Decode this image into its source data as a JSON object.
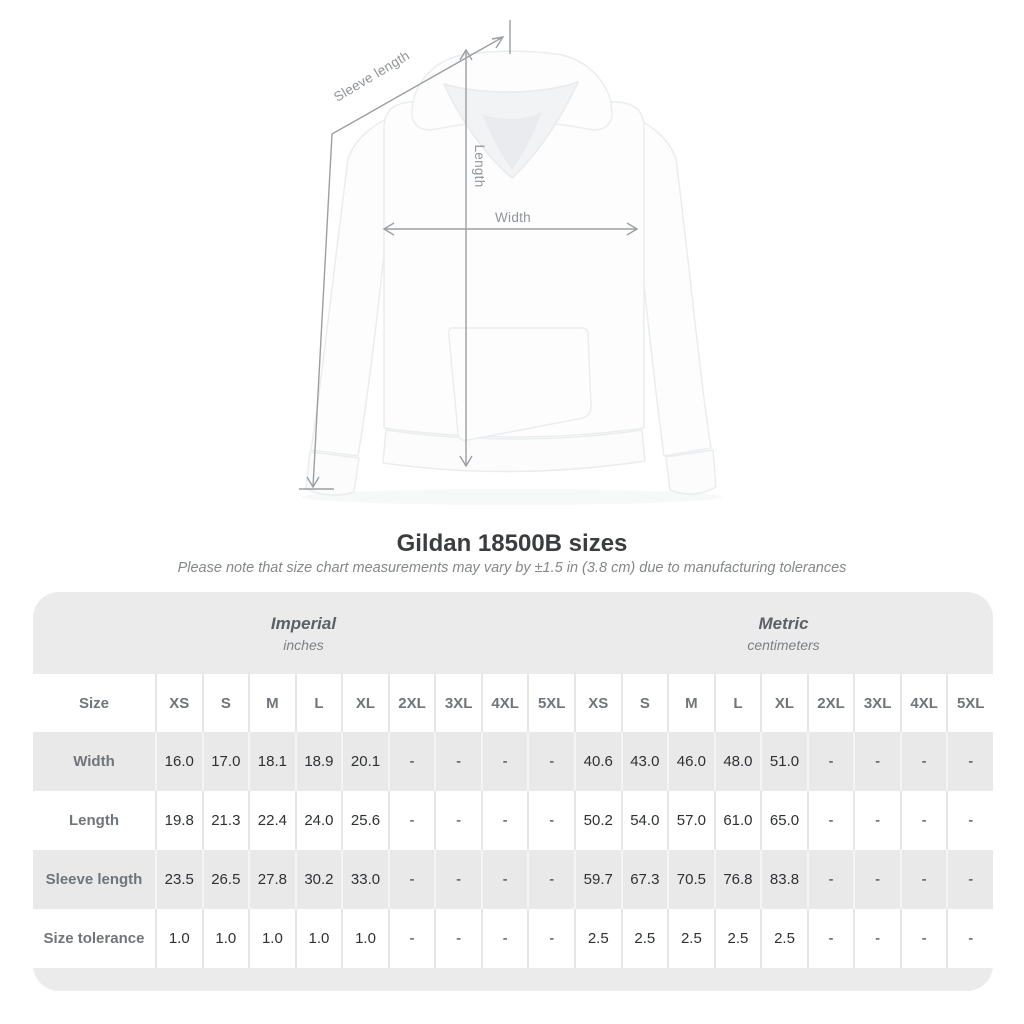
{
  "page": {
    "title": "Gildan 18500B sizes",
    "subtitle": "Please note that size chart measurements may vary by ±1.5 in (3.8 cm) due to manufacturing tolerances"
  },
  "diagram": {
    "sleeve_length_label": "Sleeve length",
    "length_label": "Length",
    "width_label": "Width"
  },
  "table": {
    "size_header": "Size",
    "groups": [
      {
        "label": "Imperial",
        "sublabel": "inches"
      },
      {
        "label": "Metric",
        "sublabel": "centimeters"
      }
    ],
    "sizes": [
      "XS",
      "S",
      "M",
      "L",
      "XL",
      "2XL",
      "3XL",
      "4XL",
      "5XL"
    ],
    "rows": [
      {
        "label": "Width",
        "imperial": [
          "16.0",
          "17.0",
          "18.1",
          "18.9",
          "20.1",
          "-",
          "-",
          "-",
          "-"
        ],
        "metric": [
          "40.6",
          "43.0",
          "46.0",
          "48.0",
          "51.0",
          "-",
          "-",
          "-",
          "-"
        ]
      },
      {
        "label": "Length",
        "imperial": [
          "19.8",
          "21.3",
          "22.4",
          "24.0",
          "25.6",
          "-",
          "-",
          "-",
          "-"
        ],
        "metric": [
          "50.2",
          "54.0",
          "57.0",
          "61.0",
          "65.0",
          "-",
          "-",
          "-",
          "-"
        ]
      },
      {
        "label": "Sleeve length",
        "imperial": [
          "23.5",
          "26.5",
          "27.8",
          "30.2",
          "33.0",
          "-",
          "-",
          "-",
          "-"
        ],
        "metric": [
          "59.7",
          "67.3",
          "70.5",
          "76.8",
          "83.8",
          "-",
          "-",
          "-",
          "-"
        ]
      },
      {
        "label": "Size tolerance",
        "imperial": [
          "1.0",
          "1.0",
          "1.0",
          "1.0",
          "1.0",
          "-",
          "-",
          "-",
          "-"
        ],
        "metric": [
          "2.5",
          "2.5",
          "2.5",
          "2.5",
          "2.5",
          "-",
          "-",
          "-",
          "-"
        ]
      }
    ]
  },
  "colors": {
    "table_band": "#ebebeb",
    "row_stripe": "#e9e9ea",
    "header_text": "#70757a",
    "value_text": "#2e3133",
    "diagram_grey": "#9b9fa2",
    "title_text": "#3a3c3e"
  }
}
